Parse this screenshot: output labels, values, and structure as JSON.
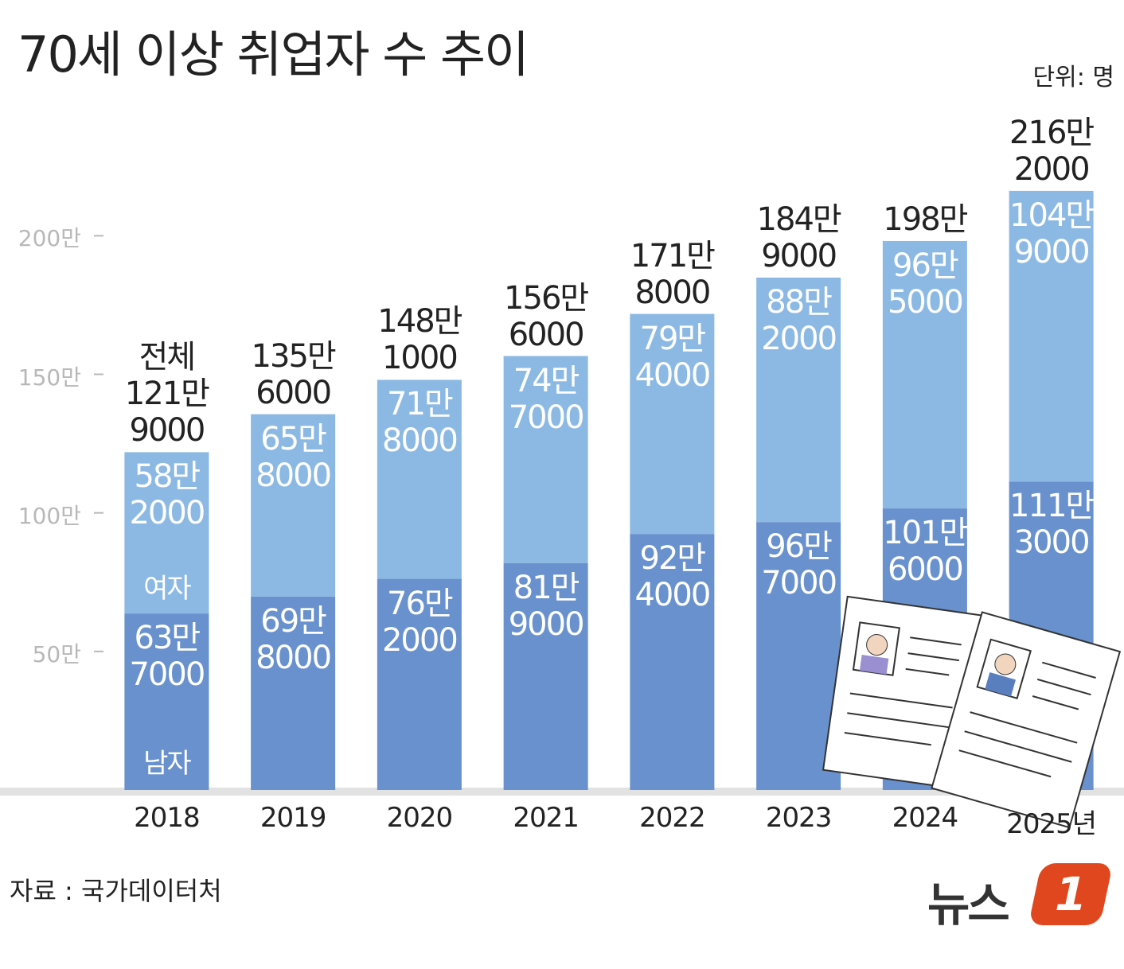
{
  "chart_data": {
    "type": "stacked_bar",
    "title": "70세 이상 취업자 수 추이",
    "unit_note": "단위: 명",
    "source": "자료 : 국가데이터처",
    "logo_text": "뉴스",
    "logo_mark": "1",
    "categories": [
      "2018",
      "2019",
      "2020",
      "2021",
      "2022",
      "2023",
      "2024",
      "2025년"
    ],
    "series": [
      {
        "name": "남자",
        "color": "#6891cd",
        "values": [
          637000,
          698000,
          762000,
          819000,
          924000,
          967000,
          1016000,
          1113000
        ],
        "value_labels": [
          "63만\n7000",
          "69만\n8000",
          "76만\n2000",
          "81만\n9000",
          "92만\n4000",
          "96만\n7000",
          "101만\n6000",
          "111만\n3000"
        ]
      },
      {
        "name": "여자",
        "color": "#8bb9e4",
        "values": [
          582000,
          658000,
          718000,
          747000,
          794000,
          882000,
          965000,
          1049000
        ],
        "value_labels": [
          "58만\n2000",
          "65만\n8000",
          "71만\n8000",
          "74만\n7000",
          "79만\n4000",
          "88만\n2000",
          "96만\n5000",
          "104만\n9000"
        ]
      }
    ],
    "total_name": "전체",
    "totals": [
      1219000,
      1356000,
      1481000,
      1566000,
      1718000,
      1849000,
      1980000,
      2162000
    ],
    "total_labels": [
      "121만\n9000",
      "135만\n6000",
      "148만\n1000",
      "156만\n6000",
      "171만\n8000",
      "184만\n9000",
      "198만",
      "216만\n2000"
    ],
    "ylim": [
      0,
      2400000
    ],
    "yticks": [
      {
        "value": 500000,
        "label": "50만"
      },
      {
        "value": 1000000,
        "label": "100만"
      },
      {
        "value": 1500000,
        "label": "150만"
      },
      {
        "value": 2000000,
        "label": "200만"
      }
    ]
  }
}
